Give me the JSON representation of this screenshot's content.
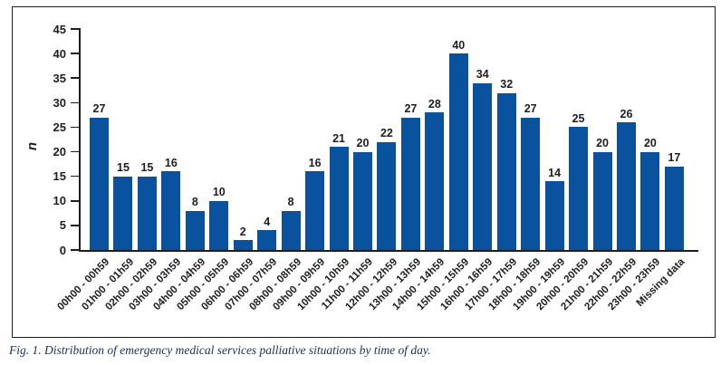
{
  "figure": {
    "caption": "Fig. 1. Distribution of emergency medical services palliative situations by time of day."
  },
  "chart_data": {
    "type": "bar",
    "title": "",
    "xlabel": "",
    "ylabel": "n",
    "ylim": [
      0,
      45
    ],
    "ytick_step": 5,
    "grid": false,
    "legend": "none",
    "bar_color": "#0a529e",
    "axis_color": "#1d1d1f",
    "text_color": "#1e1e20",
    "caption_color": "#1b3055",
    "categories": [
      "00h00 - 00h59",
      "01h00 - 01h59",
      "02h00 - 02h59",
      "03h00 - 03h59",
      "04h00 - 04h59",
      "05h00 - 05h59",
      "06h00 - 06h59",
      "07h00 - 07h59",
      "08h00 - 08h59",
      "09h00 - 09h59",
      "10h00 - 10h59",
      "11h00 - 11h59",
      "12h00 - 12h59",
      "13h00 - 13h59",
      "14h00 - 14h59",
      "15h00 - 15h59",
      "16h00 - 16h59",
      "17h00 - 17h59",
      "18h00 - 18h59",
      "19h00 - 19h59",
      "20h00 - 20h59",
      "21h00 - 21h59",
      "22h00 - 22h59",
      "23h00 - 23h59",
      "Missing data"
    ],
    "values": [
      27,
      15,
      15,
      16,
      8,
      10,
      2,
      4,
      8,
      16,
      21,
      20,
      22,
      27,
      28,
      40,
      34,
      32,
      27,
      14,
      25,
      20,
      26,
      20,
      17
    ]
  }
}
